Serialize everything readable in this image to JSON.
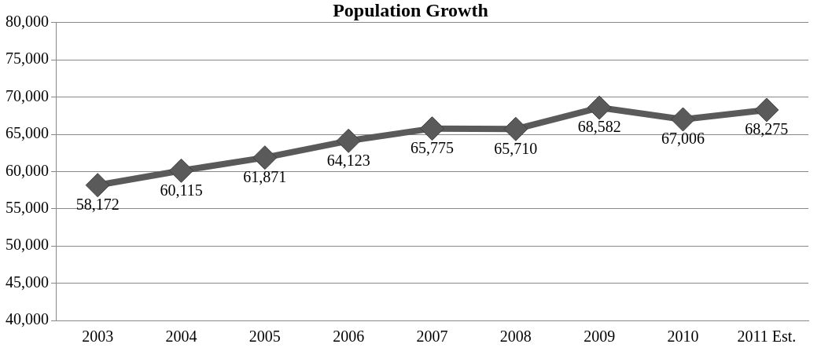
{
  "chart_data": {
    "type": "line",
    "title": "Population Growth",
    "categories": [
      "2003",
      "2004",
      "2005",
      "2006",
      "2007",
      "2008",
      "2009",
      "2010",
      "2011 Est."
    ],
    "series": [
      {
        "color": "#5a5a5a",
        "values": [
          58172,
          60115,
          61871,
          64123,
          65775,
          65710,
          68582,
          67006,
          68275
        ],
        "value_labels": [
          "58,172",
          "60,115",
          "61,871",
          "64,123",
          "65,775",
          "65,710",
          "68,582",
          "67,006",
          "68,275"
        ]
      }
    ],
    "ylim": [
      40000,
      80000
    ],
    "yticks": [
      {
        "value": 40000,
        "label": "40,000"
      },
      {
        "value": 45000,
        "label": "45,000"
      },
      {
        "value": 50000,
        "label": "50,000"
      },
      {
        "value": 55000,
        "label": "55,000"
      },
      {
        "value": 60000,
        "label": "60,000"
      },
      {
        "value": 65000,
        "label": "65,000"
      },
      {
        "value": 70000,
        "label": "70,000"
      },
      {
        "value": 75000,
        "label": "75,000"
      },
      {
        "value": 80000,
        "label": "80,000"
      }
    ],
    "grid": "y",
    "legend": false,
    "marker": "diamond",
    "line_style": "solid"
  }
}
